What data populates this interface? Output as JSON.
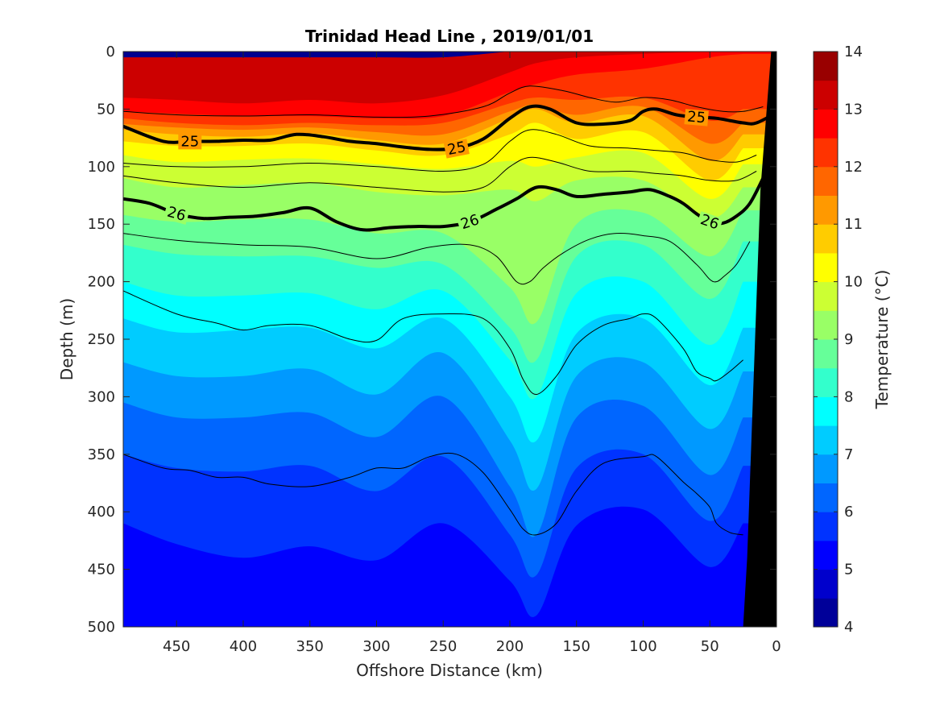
{
  "chart_data": {
    "type": "contour",
    "title": "Trinidad Head Line , 2019/01/01",
    "xlabel": "Offshore Distance (km)",
    "ylabel": "Depth (m)",
    "xlim": [
      490,
      0
    ],
    "ylim": [
      0,
      500
    ],
    "x_reversed": true,
    "y_reversed": true,
    "x_ticks": [
      450,
      400,
      350,
      300,
      250,
      200,
      150,
      100,
      50,
      0
    ],
    "y_ticks": [
      0,
      50,
      100,
      150,
      200,
      250,
      300,
      350,
      400,
      450,
      500
    ],
    "colorbar": {
      "label": "Temperature (°C)",
      "min": 4,
      "max": 14,
      "step": 0.5,
      "ticks": [
        4,
        5,
        6,
        7,
        8,
        9,
        10,
        11,
        12,
        13,
        14
      ],
      "colormap": "jet"
    },
    "temperature_isotherm_depths": {
      "x_km": [
        490,
        450,
        400,
        350,
        300,
        250,
        200,
        180,
        150,
        100,
        50,
        25
      ],
      "isotherms": [
        {
          "t": 13.5,
          "depth": [
            5,
            5,
            5,
            5,
            5,
            5,
            0,
            0,
            0,
            0,
            0,
            0
          ]
        },
        {
          "t": 13.0,
          "depth": [
            40,
            42,
            45,
            42,
            45,
            38,
            18,
            10,
            5,
            2,
            0,
            0
          ]
        },
        {
          "t": 12.5,
          "depth": [
            52,
            54,
            56,
            56,
            58,
            56,
            35,
            28,
            20,
            15,
            5,
            2
          ]
        },
        {
          "t": 12.0,
          "depth": [
            58,
            62,
            64,
            62,
            64,
            62,
            45,
            40,
            42,
            40,
            60,
            50
          ]
        },
        {
          "t": 11.5,
          "depth": [
            63,
            66,
            68,
            66,
            70,
            72,
            52,
            46,
            55,
            48,
            80,
            62
          ]
        },
        {
          "t": 11.0,
          "depth": [
            68,
            72,
            74,
            71,
            77,
            80,
            58,
            50,
            62,
            56,
            95,
            72
          ]
        },
        {
          "t": 10.5,
          "depth": [
            78,
            82,
            82,
            80,
            86,
            90,
            72,
            62,
            76,
            70,
            112,
            84
          ]
        },
        {
          "t": 10.0,
          "depth": [
            90,
            96,
            94,
            93,
            98,
            102,
            95,
            100,
            92,
            88,
            128,
            98
          ]
        },
        {
          "t": 9.5,
          "depth": [
            110,
            118,
            116,
            114,
            122,
            125,
            120,
            130,
            112,
            112,
            145,
            118
          ]
        },
        {
          "t": 9.0,
          "depth": [
            142,
            148,
            146,
            146,
            158,
            158,
            205,
            235,
            150,
            140,
            178,
            138
          ]
        },
        {
          "t": 8.5,
          "depth": [
            168,
            176,
            178,
            178,
            188,
            185,
            240,
            268,
            178,
            168,
            215,
            165
          ]
        },
        {
          "t": 8.0,
          "depth": [
            200,
            212,
            212,
            210,
            224,
            208,
            268,
            300,
            210,
            200,
            255,
            200
          ]
        },
        {
          "t": 7.5,
          "depth": [
            232,
            244,
            242,
            240,
            258,
            232,
            300,
            338,
            245,
            232,
            290,
            240
          ]
        },
        {
          "t": 7.0,
          "depth": [
            270,
            282,
            282,
            276,
            298,
            262,
            338,
            380,
            282,
            270,
            328,
            278
          ]
        },
        {
          "t": 6.5,
          "depth": [
            305,
            318,
            318,
            314,
            335,
            300,
            378,
            420,
            318,
            308,
            368,
            318
          ]
        },
        {
          "t": 6.0,
          "depth": [
            350,
            362,
            365,
            360,
            382,
            352,
            420,
            455,
            362,
            350,
            408,
            360
          ]
        },
        {
          "t": 5.5,
          "depth": [
            410,
            428,
            440,
            430,
            442,
            410,
            460,
            490,
            412,
            398,
            448,
            410
          ]
        },
        {
          "t": 5.0,
          "depth": [
            500,
            500,
            500,
            500,
            500,
            500,
            500,
            500,
            500,
            500,
            500,
            500
          ]
        }
      ]
    },
    "density_contours": {
      "labeled": [
        {
          "sigma": 25,
          "x_km": [
            490,
            460,
            440,
            420,
            400,
            380,
            360,
            340,
            320,
            300,
            280,
            260,
            240,
            220,
            200,
            185,
            170,
            150,
            130,
            110,
            100,
            90,
            75,
            60,
            45,
            25,
            15,
            0
          ],
          "depth": [
            65,
            78,
            78,
            78,
            77,
            77,
            72,
            74,
            78,
            80,
            83,
            85,
            84,
            76,
            58,
            48,
            50,
            62,
            63,
            60,
            52,
            50,
            55,
            57,
            58,
            62,
            62,
            53
          ]
        },
        {
          "sigma": 26,
          "x_km": [
            490,
            470,
            450,
            430,
            410,
            390,
            370,
            350,
            330,
            310,
            290,
            270,
            250,
            230,
            210,
            195,
            180,
            165,
            150,
            130,
            110,
            95,
            80,
            70,
            60,
            50,
            40,
            30,
            20,
            10
          ],
          "depth": [
            128,
            132,
            141,
            145,
            144,
            143,
            140,
            136,
            148,
            155,
            153,
            152,
            152,
            148,
            137,
            128,
            118,
            120,
            126,
            124,
            122,
            120,
            126,
            132,
            141,
            148,
            149,
            143,
            132,
            110
          ]
        }
      ],
      "unlabeled": [
        {
          "x_km": [
            490,
            450,
            400,
            350,
            300,
            260,
            220,
            200,
            185,
            160,
            140,
            120,
            100,
            80,
            60,
            40,
            25,
            10
          ],
          "depth": [
            52,
            55,
            56,
            55,
            57,
            56,
            48,
            36,
            30,
            34,
            40,
            44,
            40,
            42,
            48,
            52,
            52,
            48
          ]
        },
        {
          "x_km": [
            490,
            450,
            400,
            350,
            300,
            250,
            220,
            200,
            185,
            165,
            140,
            110,
            90,
            70,
            50,
            30,
            15
          ],
          "depth": [
            97,
            100,
            100,
            97,
            100,
            104,
            98,
            78,
            68,
            72,
            82,
            84,
            86,
            88,
            94,
            96,
            90
          ]
        },
        {
          "x_km": [
            490,
            450,
            400,
            350,
            300,
            250,
            220,
            200,
            185,
            165,
            140,
            110,
            90,
            70,
            50,
            30,
            15
          ],
          "depth": [
            108,
            114,
            118,
            114,
            118,
            122,
            118,
            100,
            92,
            96,
            104,
            104,
            106,
            108,
            112,
            112,
            104
          ]
        },
        {
          "x_km": [
            490,
            450,
            400,
            350,
            300,
            260,
            230,
            210,
            195,
            185,
            175,
            160,
            140,
            120,
            100,
            80,
            60,
            50,
            45,
            40,
            30,
            20
          ],
          "depth": [
            158,
            164,
            168,
            170,
            180,
            170,
            168,
            178,
            200,
            200,
            188,
            175,
            163,
            158,
            160,
            165,
            185,
            198,
            200,
            196,
            185,
            165
          ]
        },
        {
          "x_km": [
            490,
            450,
            420,
            400,
            380,
            350,
            320,
            300,
            280,
            250,
            220,
            200,
            190,
            180,
            165,
            150,
            130,
            110,
            100,
            90,
            70,
            60,
            50,
            45,
            35,
            25
          ],
          "depth": [
            208,
            228,
            236,
            242,
            238,
            238,
            250,
            251,
            232,
            228,
            232,
            258,
            285,
            298,
            282,
            255,
            238,
            232,
            228,
            232,
            258,
            278,
            284,
            286,
            278,
            268
          ]
        },
        {
          "x_km": [
            490,
            460,
            440,
            420,
            400,
            380,
            350,
            320,
            300,
            280,
            260,
            240,
            220,
            200,
            190,
            180,
            165,
            150,
            130,
            100,
            90,
            70,
            60,
            50,
            45,
            35,
            25
          ],
          "depth": [
            350,
            362,
            364,
            370,
            370,
            376,
            378,
            370,
            362,
            362,
            352,
            350,
            366,
            398,
            415,
            420,
            410,
            382,
            358,
            352,
            352,
            374,
            384,
            396,
            410,
            418,
            420
          ]
        }
      ]
    },
    "bathymetry": {
      "color": "#000000",
      "x_km": [
        0,
        4,
        12,
        22,
        25,
        0
      ],
      "depth": [
        0,
        0,
        120,
        440,
        500,
        500
      ]
    }
  }
}
